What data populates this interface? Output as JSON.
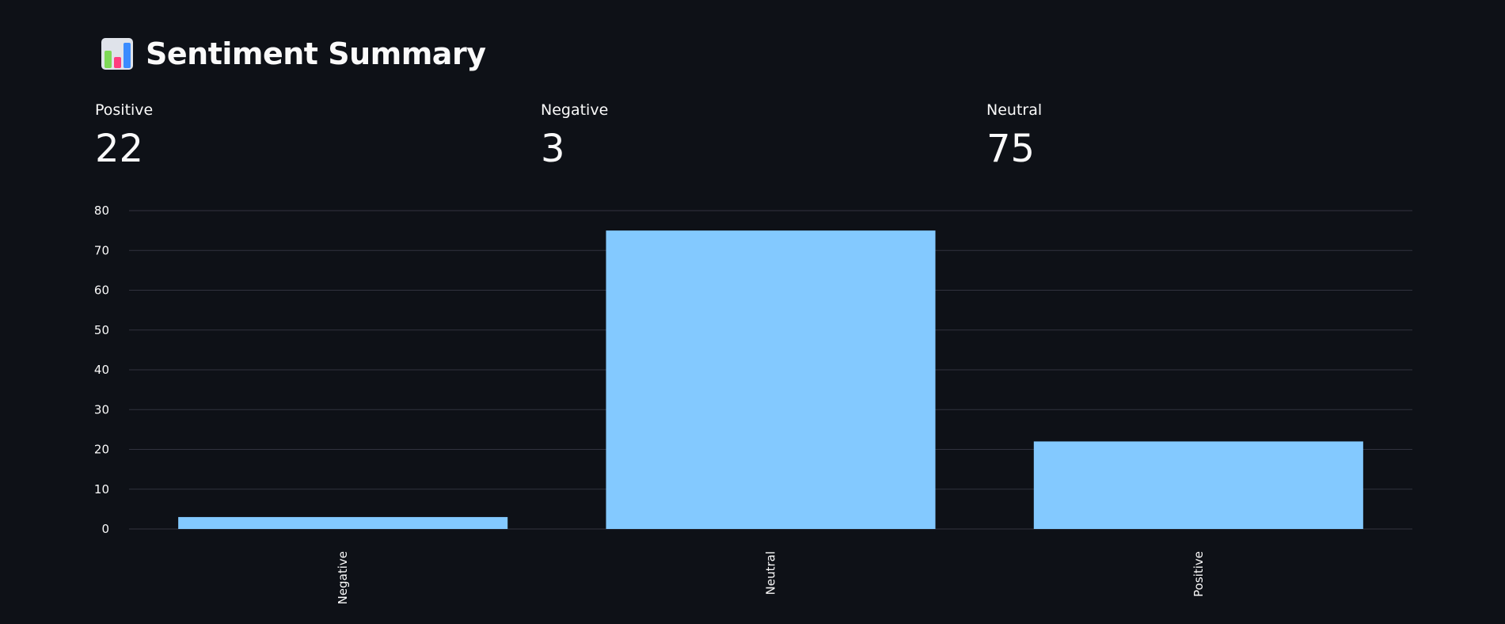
{
  "header": {
    "title": "Sentiment Summary",
    "icon": "bar-chart-icon"
  },
  "metrics": [
    {
      "label": "Positive",
      "value": "22"
    },
    {
      "label": "Negative",
      "value": "3"
    },
    {
      "label": "Neutral",
      "value": "75"
    }
  ],
  "colors": {
    "background": "#0e1117",
    "bar": "#83c9ff",
    "grid": "#31333f",
    "text": "#fafafa"
  },
  "chart_data": {
    "type": "bar",
    "categories": [
      "Negative",
      "Neutral",
      "Positive"
    ],
    "values": [
      3,
      75,
      22
    ],
    "title": "",
    "xlabel": "",
    "ylabel": "",
    "ylim": [
      0,
      80
    ],
    "yticks": [
      0,
      10,
      20,
      30,
      40,
      50,
      60,
      70,
      80
    ],
    "grid": true
  }
}
